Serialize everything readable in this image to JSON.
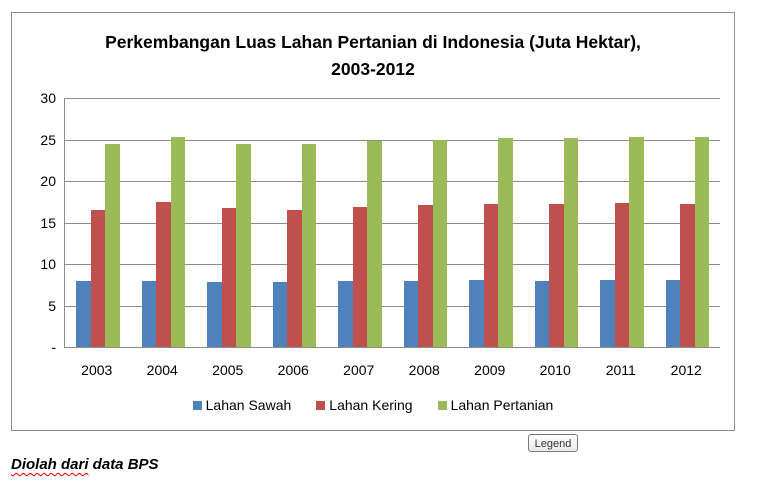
{
  "chart_data": {
    "type": "bar",
    "title": "Perkembangan Luas Lahan Pertanian di Indonesia (Juta Hektar), 2003-2012",
    "title_lines": [
      "Perkembangan Luas Lahan Pertanian di Indonesia (Juta Hektar),",
      "2003-2012"
    ],
    "xlabel": "",
    "ylabel": "",
    "ylim": [
      0,
      30
    ],
    "yticks": [
      0,
      5,
      10,
      15,
      20,
      25,
      30
    ],
    "ytick_labels": [
      "-",
      "5",
      "10",
      "15",
      "20",
      "25",
      "30"
    ],
    "grid": true,
    "legend_position": "bottom",
    "categories": [
      "2003",
      "2004",
      "2005",
      "2006",
      "2007",
      "2008",
      "2009",
      "2010",
      "2011",
      "2012"
    ],
    "series": [
      {
        "name": "Lahan Sawah",
        "color": "#4f81bd",
        "values": [
          7.9,
          7.9,
          7.8,
          7.8,
          7.9,
          8.0,
          8.1,
          8.0,
          8.1,
          8.1
        ]
      },
      {
        "name": "Lahan Kering",
        "color": "#c0504d",
        "values": [
          16.5,
          17.5,
          16.7,
          16.5,
          16.9,
          17.1,
          17.2,
          17.2,
          17.3,
          17.2
        ]
      },
      {
        "name": "Lahan Pertanian",
        "color": "#9bbb59",
        "values": [
          24.4,
          25.3,
          24.4,
          24.4,
          24.8,
          25.0,
          25.2,
          25.2,
          25.3,
          25.3
        ]
      }
    ]
  },
  "ui": {
    "legend_tooltip": "Legend",
    "source_note_part1": "Diolah dari",
    "source_note_part2": " data BPS"
  }
}
